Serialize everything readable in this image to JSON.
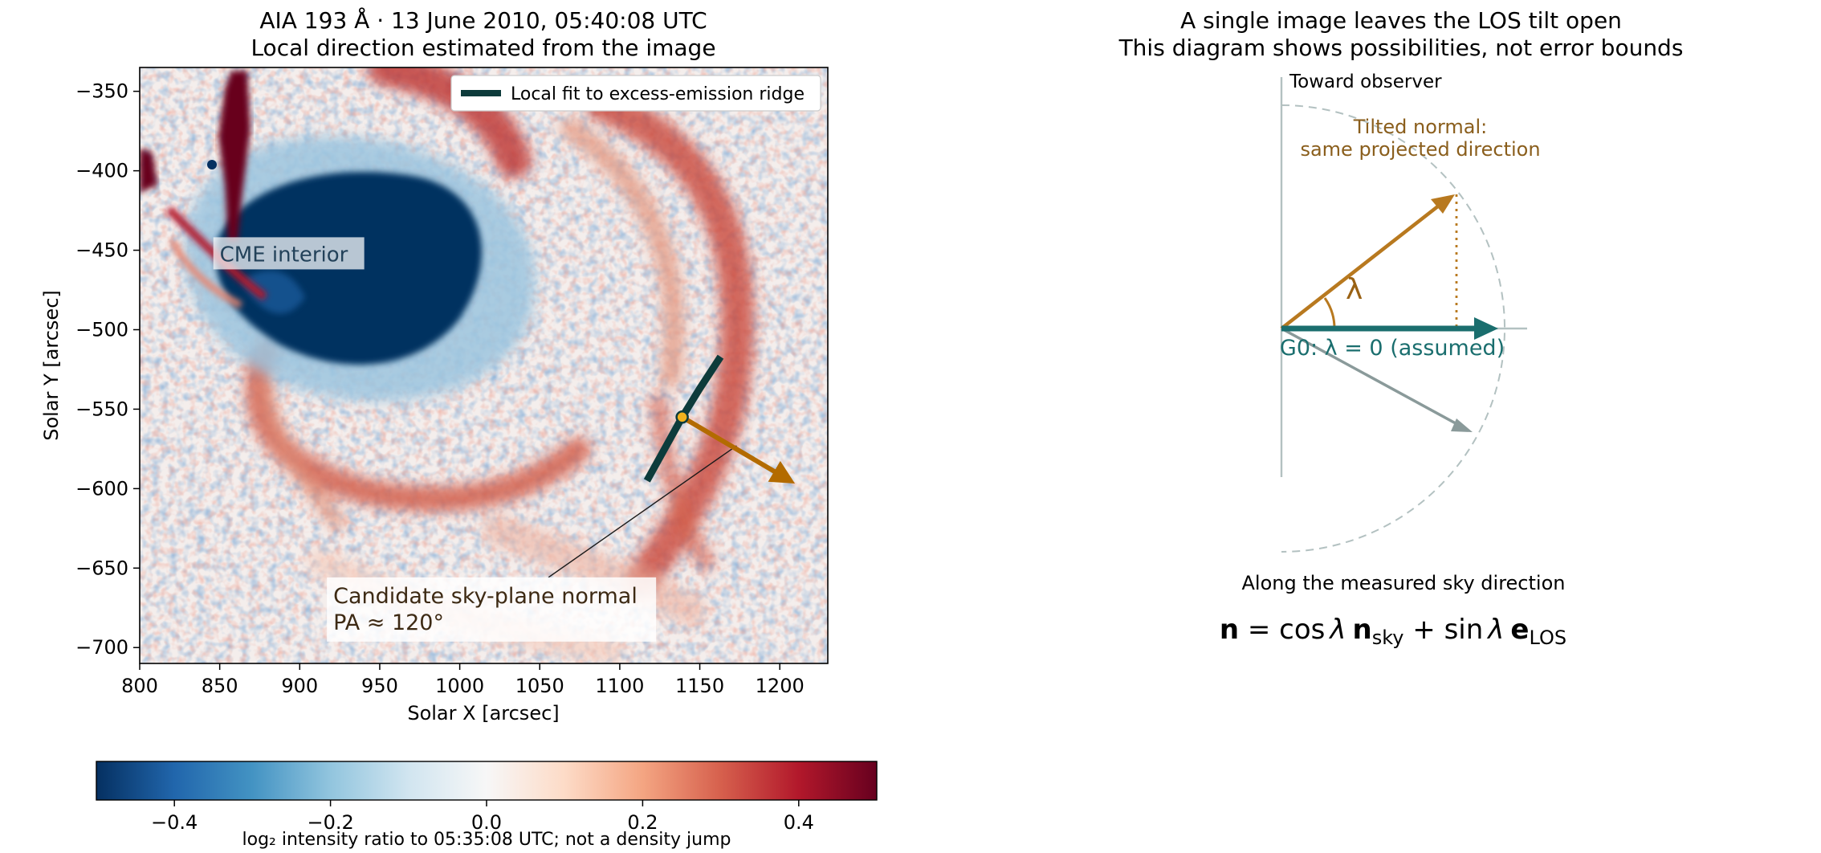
{
  "chart_data": [
    {
      "type": "heatmap",
      "title_line1": "AIA 193 Å · 13 June 2010, 05:40:08 UTC",
      "title_line2": "Local direction estimated from the image",
      "xlabel": "Solar X [arcsec]",
      "ylabel": "Solar Y [arcsec]",
      "xlim": [
        800,
        1230
      ],
      "ylim": [
        -710,
        -335
      ],
      "xticks": [
        800,
        850,
        900,
        950,
        1000,
        1050,
        1100,
        1150,
        1200
      ],
      "xtick_labels": [
        "800",
        "850",
        "900",
        "950",
        "1000",
        "1050",
        "1100",
        "1150",
        "1200"
      ],
      "yticks": [
        -350,
        -400,
        -450,
        -500,
        -550,
        -600,
        -650,
        -700
      ],
      "ytick_labels": [
        "−350",
        "−400",
        "−450",
        "−500",
        "−550",
        "−600",
        "−650",
        "−700"
      ],
      "legend": {
        "label": "Local fit to excess-emission ridge",
        "position": "top-right"
      },
      "ridge_fit": {
        "x": [
          1117,
          1128,
          1139,
          1150,
          1163
        ],
        "y": [
          -595,
          -575,
          -555,
          -537,
          -517
        ]
      },
      "fit_point": {
        "x": 1139,
        "y": -555
      },
      "normal_arrow": {
        "from": {
          "x": 1139,
          "y": -555
        },
        "to": {
          "x": 1210,
          "y": -597
        }
      },
      "annotations": [
        {
          "text": "CME interior",
          "x": 850,
          "y": -457
        },
        {
          "text_line1": "Candidate sky-plane normal",
          "text_line2": "PA ≈ 120°",
          "x": 921,
          "y": -672,
          "points_to": {
            "x": 1173,
            "y": -573
          }
        }
      ],
      "colorbar": {
        "colormap": "RdBu_r",
        "range": [
          -0.5,
          0.5
        ],
        "ticks": [
          -0.4,
          -0.2,
          0.0,
          0.2,
          0.4
        ],
        "tick_labels": [
          "−0.4",
          "−0.2",
          "0.0",
          "0.2",
          "0.4"
        ],
        "label": "log₂ intensity ratio to 05:35:08 UTC; not a density jump"
      },
      "colors": {
        "ridge": "#0d3b3b",
        "normal_arrow": "#b36b00",
        "fit_point": "#f2b21d"
      }
    },
    {
      "type": "diagram",
      "title_line1": "A single image leaves the LOS tilt open",
      "title_line2": "This diagram shows possibilities, not error bounds",
      "labels": {
        "toward_observer": "Toward observer",
        "tilted_line1": "Tilted normal:",
        "tilted_line2": "same projected direction",
        "lambda": "λ",
        "g0": "G0: λ = 0 (assumed)",
        "caption": "Along the measured sky direction"
      },
      "equation": {
        "n": "n",
        "eq": " = cos",
        "lam1": "λ",
        "nbold": "n",
        "sky": "sky",
        "plus": " + sin",
        "lam2": "λ",
        "ebold": "e",
        "los": "LOS"
      },
      "tilt_angles_deg": [
        35,
        0,
        -27
      ],
      "colors": {
        "g0": "#1a6e6e",
        "tilted": "#b8791f",
        "neg": "#8a9a9a",
        "circle": "#b3c1c1",
        "axis": "#b3c1c1"
      }
    }
  ]
}
